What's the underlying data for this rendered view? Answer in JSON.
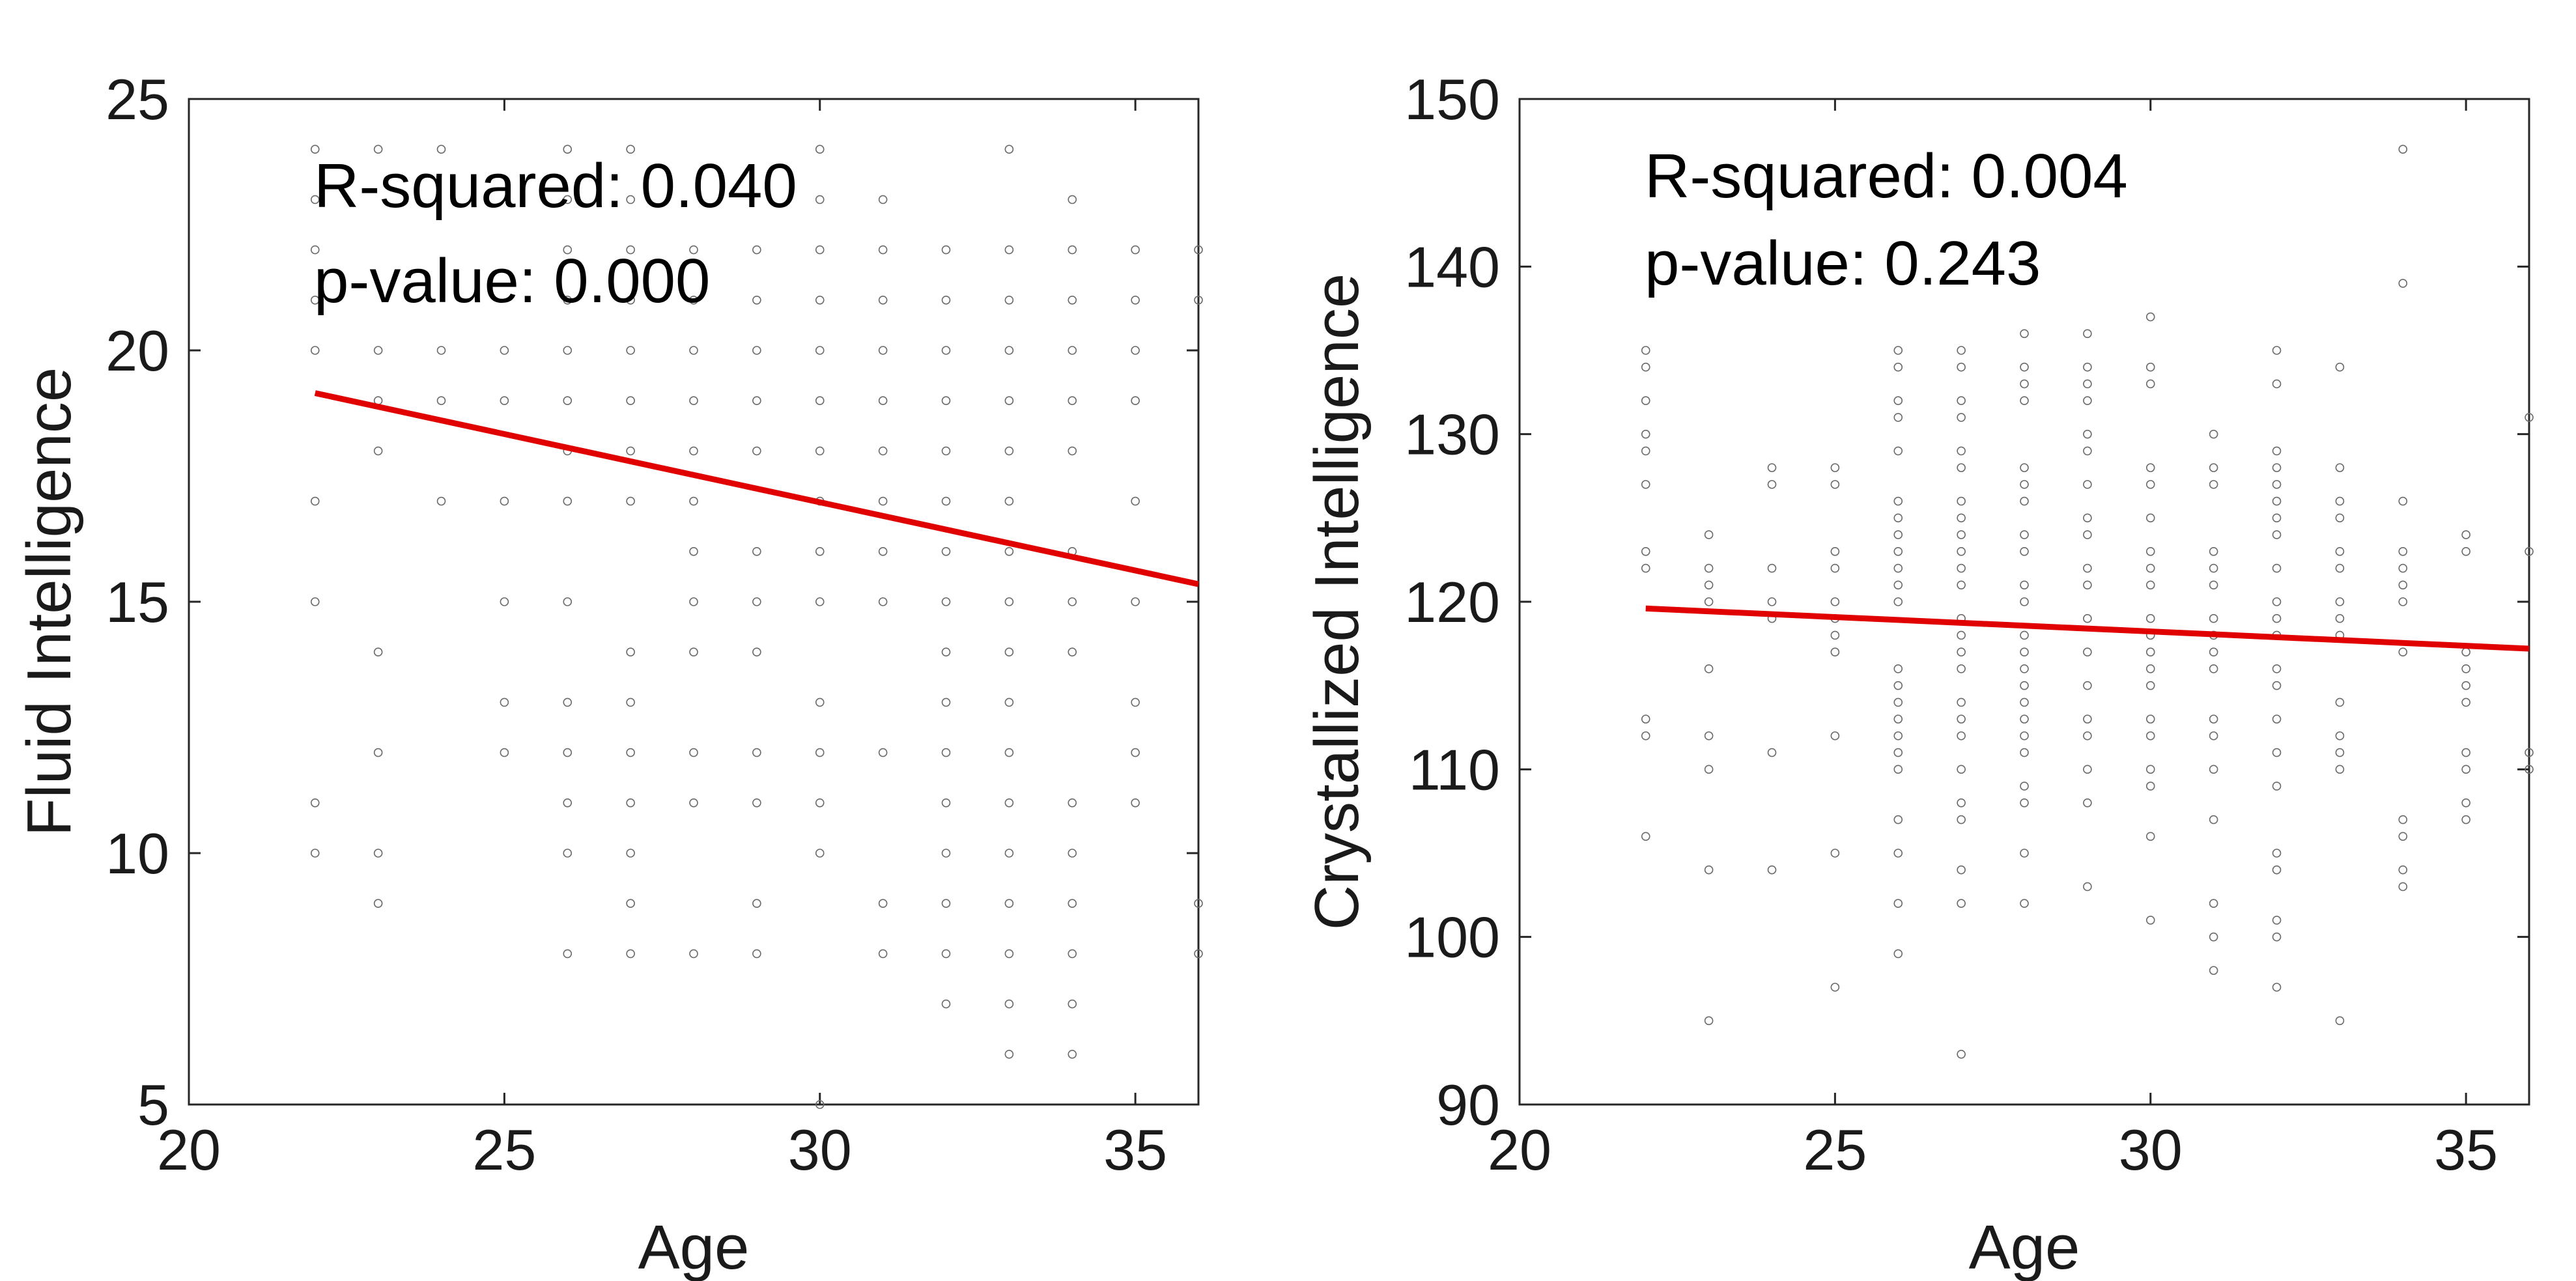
{
  "chart_data": [
    {
      "type": "scatter",
      "xlabel": "Age",
      "ylabel": "Fluid Intelligence",
      "xlim": [
        20,
        36
      ],
      "ylim": [
        5,
        25
      ],
      "xticks": [
        "20",
        "25",
        "30",
        "35"
      ],
      "yticks": [
        "5",
        "10",
        "15",
        "20",
        "25"
      ],
      "annotations": [
        "R-squared: 0.040",
        "p-value: 0.000"
      ],
      "fit_line": {
        "x": [
          22,
          36
        ],
        "y": [
          19.15,
          15.35
        ],
        "color": "#e00000"
      },
      "x": [
        22,
        22,
        22,
        22,
        22,
        22,
        22,
        22,
        22,
        23,
        23,
        23,
        23,
        23,
        23,
        23,
        23,
        24,
        24,
        24,
        24,
        25,
        25,
        25,
        25,
        25,
        25,
        26,
        26,
        26,
        26,
        26,
        26,
        26,
        26,
        26,
        26,
        26,
        26,
        26,
        26,
        27,
        27,
        27,
        27,
        27,
        27,
        27,
        27,
        27,
        27,
        27,
        27,
        27,
        27,
        27,
        28,
        28,
        28,
        28,
        28,
        28,
        28,
        28,
        28,
        28,
        28,
        28,
        29,
        29,
        29,
        29,
        29,
        29,
        29,
        29,
        29,
        29,
        29,
        29,
        30,
        30,
        30,
        30,
        30,
        30,
        30,
        30,
        30,
        30,
        30,
        30,
        30,
        30,
        30,
        31,
        31,
        31,
        31,
        31,
        31,
        31,
        31,
        31,
        31,
        31,
        31,
        32,
        32,
        32,
        32,
        32,
        32,
        32,
        32,
        32,
        32,
        32,
        32,
        32,
        32,
        32,
        32,
        33,
        33,
        33,
        33,
        33,
        33,
        33,
        33,
        33,
        33,
        33,
        33,
        33,
        33,
        33,
        33,
        33,
        33,
        34,
        34,
        34,
        34,
        34,
        34,
        34,
        34,
        34,
        34,
        34,
        34,
        34,
        34,
        34,
        35,
        35,
        35,
        35,
        35,
        35,
        35,
        35,
        35,
        36,
        36,
        36,
        36
      ],
      "y": [
        24,
        23,
        22,
        21,
        20,
        17,
        15,
        11,
        10,
        24,
        19,
        18,
        14,
        12,
        10,
        9,
        20,
        24,
        20,
        19,
        17,
        20,
        19,
        17,
        15,
        13,
        12,
        24,
        23,
        22,
        21,
        20,
        19,
        18,
        17,
        15,
        13,
        12,
        11,
        10,
        8,
        24,
        23,
        22,
        21,
        20,
        19,
        18,
        17,
        14,
        13,
        12,
        11,
        10,
        9,
        8,
        22,
        21,
        20,
        19,
        18,
        17,
        16,
        15,
        14,
        12,
        11,
        8,
        22,
        21,
        20,
        19,
        18,
        16,
        15,
        14,
        12,
        11,
        9,
        8,
        24,
        23,
        22,
        21,
        20,
        19,
        18,
        17,
        16,
        15,
        13,
        12,
        11,
        10,
        5,
        23,
        22,
        21,
        20,
        19,
        18,
        17,
        16,
        15,
        12,
        9,
        8,
        22,
        21,
        20,
        19,
        18,
        17,
        16,
        15,
        14,
        13,
        12,
        11,
        10,
        9,
        8,
        7,
        24,
        22,
        21,
        20,
        19,
        18,
        17,
        16,
        15,
        14,
        13,
        12,
        11,
        10,
        9,
        8,
        7,
        6,
        23,
        22,
        21,
        20,
        19,
        18,
        16,
        15,
        14,
        11,
        10,
        9,
        8,
        7,
        6,
        22,
        21,
        19,
        17,
        15,
        13,
        12,
        11,
        20,
        22,
        21,
        9,
        8
      ]
    },
    {
      "type": "scatter",
      "xlabel": "Age",
      "ylabel": "Crystallized Intelligence",
      "xlim": [
        20,
        36
      ],
      "ylim": [
        90,
        150
      ],
      "xticks": [
        "20",
        "25",
        "30",
        "35"
      ],
      "yticks": [
        "90",
        "100",
        "110",
        "120",
        "130",
        "140",
        "150"
      ],
      "annotations": [
        "R-squared: 0.004",
        "p-value: 0.243"
      ],
      "fit_line": {
        "x": [
          22,
          36
        ],
        "y": [
          119.6,
          117.2
        ],
        "color": "#e00000"
      },
      "x": [
        22,
        22,
        22,
        22,
        22,
        22,
        22,
        22,
        22,
        22,
        22,
        23,
        23,
        23,
        23,
        23,
        23,
        23,
        23,
        23,
        24,
        24,
        24,
        24,
        24,
        24,
        24,
        25,
        25,
        25,
        25,
        25,
        25,
        25,
        25,
        25,
        25,
        25,
        26,
        26,
        26,
        26,
        26,
        26,
        26,
        26,
        26,
        26,
        26,
        26,
        26,
        26,
        26,
        26,
        26,
        26,
        26,
        26,
        26,
        26,
        26,
        27,
        27,
        27,
        27,
        27,
        27,
        27,
        27,
        27,
        27,
        27,
        27,
        27,
        27,
        27,
        27,
        27,
        27,
        27,
        27,
        27,
        27,
        27,
        27,
        27,
        28,
        28,
        28,
        28,
        28,
        28,
        28,
        28,
        28,
        28,
        28,
        28,
        28,
        28,
        28,
        28,
        28,
        28,
        28,
        28,
        28,
        28,
        28,
        29,
        29,
        29,
        29,
        29,
        29,
        29,
        29,
        29,
        29,
        29,
        29,
        29,
        29,
        29,
        29,
        29,
        29,
        29,
        30,
        30,
        30,
        30,
        30,
        30,
        30,
        30,
        30,
        30,
        30,
        30,
        30,
        30,
        30,
        30,
        30,
        30,
        30,
        30,
        31,
        31,
        31,
        31,
        31,
        31,
        31,
        31,
        31,
        31,
        31,
        31,
        31,
        31,
        31,
        31,
        31,
        32,
        32,
        32,
        32,
        32,
        32,
        32,
        32,
        32,
        32,
        32,
        32,
        32,
        32,
        32,
        32,
        32,
        32,
        32,
        32,
        32,
        32,
        33,
        33,
        33,
        33,
        33,
        33,
        33,
        33,
        33,
        33,
        33,
        33,
        33,
        33,
        34,
        34,
        34,
        34,
        34,
        34,
        34,
        34,
        34,
        34,
        34,
        34,
        35,
        35,
        35,
        35,
        35,
        35,
        35,
        35,
        35,
        35,
        36,
        36,
        36,
        36
      ],
      "y": [
        135,
        134,
        132,
        130,
        129,
        127,
        123,
        122,
        113,
        112,
        106,
        124,
        122,
        121,
        120,
        116,
        112,
        110,
        104,
        95,
        128,
        127,
        122,
        120,
        119,
        111,
        104,
        128,
        127,
        123,
        122,
        120,
        119,
        118,
        117,
        112,
        105,
        97,
        135,
        134,
        132,
        131,
        129,
        126,
        125,
        124,
        123,
        122,
        121,
        120,
        116,
        115,
        114,
        113,
        112,
        111,
        110,
        107,
        105,
        102,
        99,
        135,
        134,
        132,
        131,
        129,
        128,
        126,
        125,
        124,
        123,
        122,
        121,
        119,
        118,
        117,
        116,
        114,
        113,
        112,
        110,
        108,
        107,
        104,
        102,
        93,
        136,
        134,
        133,
        132,
        128,
        127,
        126,
        124,
        123,
        121,
        120,
        118,
        117,
        116,
        115,
        114,
        113,
        112,
        111,
        109,
        108,
        105,
        102,
        136,
        134,
        133,
        132,
        130,
        129,
        127,
        125,
        124,
        122,
        121,
        119,
        117,
        115,
        113,
        112,
        110,
        108,
        103,
        137,
        134,
        133,
        128,
        127,
        125,
        123,
        122,
        121,
        119,
        118,
        117,
        116,
        115,
        113,
        112,
        110,
        109,
        106,
        101,
        130,
        128,
        127,
        123,
        122,
        121,
        119,
        118,
        117,
        116,
        113,
        112,
        110,
        107,
        102,
        100,
        98,
        135,
        133,
        129,
        128,
        127,
        126,
        125,
        124,
        122,
        120,
        119,
        118,
        116,
        115,
        113,
        111,
        109,
        105,
        104,
        101,
        100,
        97,
        134,
        128,
        126,
        125,
        123,
        122,
        120,
        119,
        118,
        114,
        112,
        111,
        110,
        95,
        147,
        139,
        126,
        123,
        122,
        121,
        120,
        117,
        107,
        106,
        104,
        103,
        124,
        123,
        117,
        116,
        115,
        114,
        111,
        110,
        108,
        107,
        131,
        123,
        111,
        110
      ]
    }
  ]
}
